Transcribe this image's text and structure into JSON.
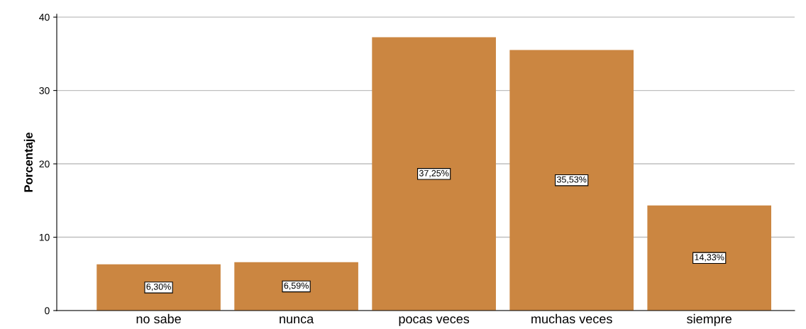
{
  "chart_data": {
    "type": "bar",
    "ylabel": "Porcentaje",
    "categories": [
      "no sabe",
      "nunca",
      "pocas veces",
      "muchas veces",
      "siempre"
    ],
    "values": [
      6.3,
      6.59,
      37.25,
      35.53,
      14.33
    ],
    "value_labels": [
      "6,30%",
      "6,59%",
      "37,25%",
      "35,53%",
      "14,33%"
    ],
    "color": "#cb8641",
    "ylim": [
      0,
      40.4
    ],
    "yticks": [
      0,
      10,
      20,
      30,
      40
    ],
    "grid": "y"
  }
}
